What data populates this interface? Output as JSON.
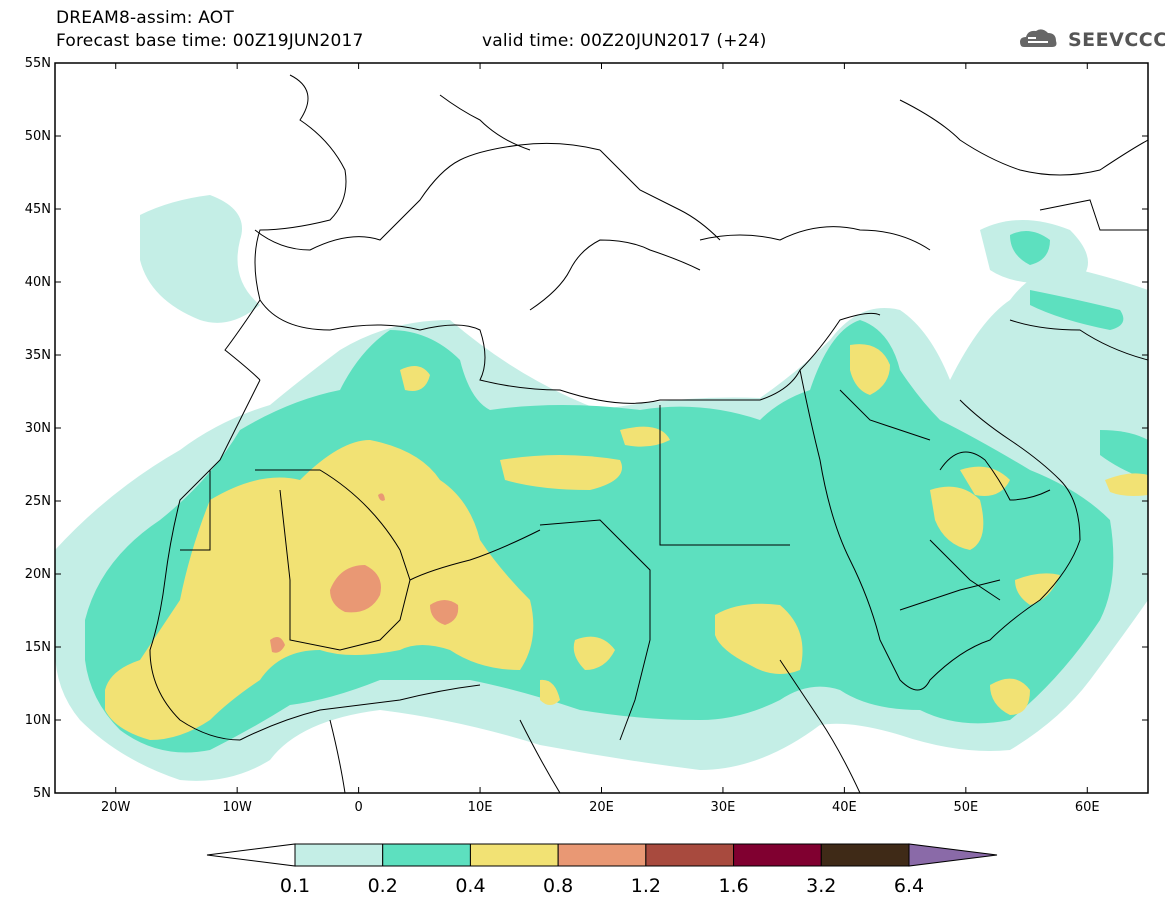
{
  "header": {
    "title": "DREAM8-assim: AOT",
    "base_time_label": "Forecast base time: 00Z19JUN2017",
    "valid_time_label": "valid time: 00Z20JUN2017 (+24)"
  },
  "logo": {
    "text": "SEEVCCC",
    "icon": "cloud-icon"
  },
  "map": {
    "lat_labels": [
      "55N",
      "50N",
      "45N",
      "40N",
      "35N",
      "30N",
      "25N",
      "20N",
      "15N",
      "10N",
      "5N"
    ],
    "lon_labels": [
      "20W",
      "10W",
      "0",
      "10E",
      "20E",
      "30E",
      "40E",
      "50E",
      "60E"
    ],
    "lat_range": [
      5,
      55
    ],
    "lon_range": [
      -25,
      65
    ]
  },
  "colorbar": {
    "labels": [
      "0.1",
      "0.2",
      "0.4",
      "0.8",
      "1.2",
      "1.6",
      "3.2",
      "6.4"
    ],
    "colors": [
      "#ffffff",
      "#c4eee6",
      "#5de0bf",
      "#f2e274",
      "#e99874",
      "#a84a3e",
      "#800030",
      "#3f2a17",
      "#8a6aa8"
    ]
  },
  "colors": {
    "level_0_1": "#c4eee6",
    "level_0_2": "#5de0bf",
    "level_0_4": "#f2e274",
    "level_0_8": "#e99874",
    "level_1_2": "#a84a3e"
  }
}
